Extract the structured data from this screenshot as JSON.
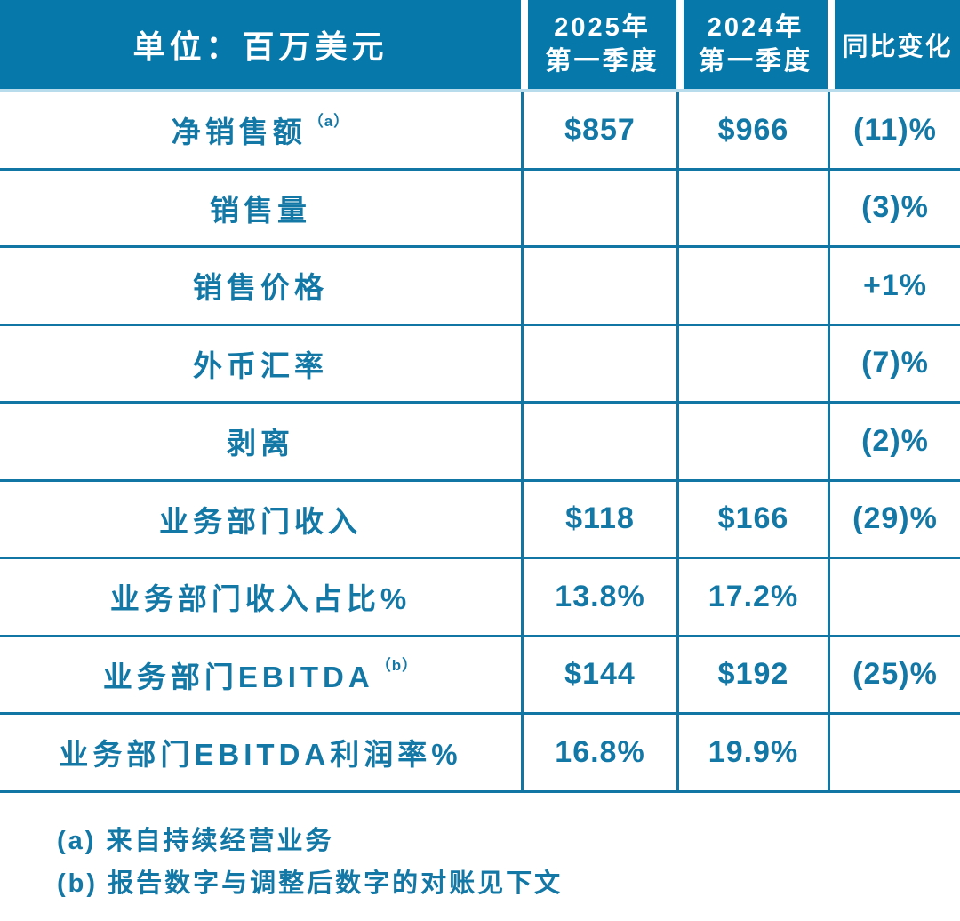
{
  "colors": {
    "header_background": "#0778aa",
    "header_text": "#ffffff",
    "body_text": "#1478a6",
    "grid_line": "#1176a4",
    "under_header_line": "#b9dcec",
    "page_background": "#ffffff"
  },
  "ui": {
    "header": {
      "col2_lines": [
        "2025年",
        "第一季度"
      ],
      "col3_lines": [
        "2024年",
        "第一季度"
      ]
    }
  },
  "chart_data": {
    "type": "table",
    "title": "单位：百万美元",
    "columns": [
      "单位：百万美元",
      "2025年第一季度",
      "2024年第一季度",
      "同比变化"
    ],
    "rows": [
      {
        "label": "净销售额",
        "sup": "（a）",
        "q1_2025": "$857",
        "q1_2024": "$966",
        "yoy": "(11)%"
      },
      {
        "label": "销售量",
        "sup": "",
        "q1_2025": "",
        "q1_2024": "",
        "yoy": "(3)%"
      },
      {
        "label": "销售价格",
        "sup": "",
        "q1_2025": "",
        "q1_2024": "",
        "yoy": "+1%"
      },
      {
        "label": "外币汇率",
        "sup": "",
        "q1_2025": "",
        "q1_2024": "",
        "yoy": "(7)%"
      },
      {
        "label": "剥离",
        "sup": "",
        "q1_2025": "",
        "q1_2024": "",
        "yoy": "(2)%"
      },
      {
        "label": "业务部门收入",
        "sup": "",
        "q1_2025": "$118",
        "q1_2024": "$166",
        "yoy": "(29)%"
      },
      {
        "label": "业务部门收入占比%",
        "sup": "",
        "q1_2025": "13.8%",
        "q1_2024": "17.2%",
        "yoy": ""
      },
      {
        "label": "业务部门EBITDA",
        "sup": "（b）",
        "q1_2025": "$144",
        "q1_2024": "$192",
        "yoy": "(25)%"
      },
      {
        "label": "业务部门EBITDA利润率%",
        "sup": "",
        "q1_2025": "16.8%",
        "q1_2024": "19.9%",
        "yoy": ""
      }
    ],
    "footnotes": [
      "(a) 来自持续经营业务",
      "(b) 报告数字与调整后数字的对账见下文"
    ]
  }
}
